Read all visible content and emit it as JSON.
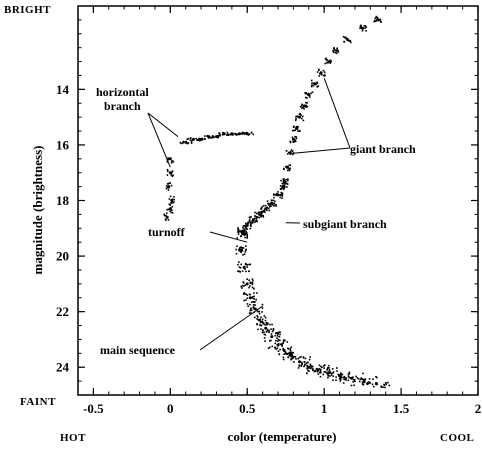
{
  "chart_data": {
    "type": "scatter",
    "title": "",
    "xlabel": "color (temperature)",
    "ylabel": "magnitude (brightness)",
    "xlim": [
      -0.6,
      2.0
    ],
    "ylim": [
      25.0,
      11.0
    ],
    "y_inverted": true,
    "x_ticks": [
      -0.5,
      0,
      0.5,
      1,
      1.5,
      2
    ],
    "x_tick_labels": [
      "-0.5",
      "0",
      "0.5",
      "1",
      "1.5",
      "2"
    ],
    "y_ticks": [
      14,
      16,
      18,
      20,
      22,
      24
    ],
    "y_tick_labels": [
      "14",
      "16",
      "18",
      "20",
      "22",
      "24"
    ],
    "corner_labels": {
      "top_left": "BRIGHT",
      "bottom_left": "FAINT",
      "bottom_x_left": "HOT",
      "bottom_x_right": "COOL"
    },
    "annotations": [
      {
        "text": "horizontal branch",
        "lines": [
          "horizontal",
          "branch"
        ],
        "targets": [
          [
            0.05,
            15.7
          ],
          [
            0.0,
            16.8
          ]
        ]
      },
      {
        "text": "giant branch",
        "targets": [
          [
            1.0,
            13.6
          ],
          [
            0.8,
            16.3
          ]
        ]
      },
      {
        "text": "subgiant branch",
        "targets": [
          [
            0.75,
            18.8
          ]
        ]
      },
      {
        "text": "turnoff",
        "targets": [
          [
            0.5,
            19.5
          ]
        ]
      },
      {
        "text": "main sequence",
        "targets": [
          [
            0.6,
            21.8
          ]
        ]
      }
    ],
    "series": [
      {
        "role": "main-sequence",
        "x": [
          0.47,
          0.46,
          0.48,
          0.5,
          0.52,
          0.55,
          0.58,
          0.62,
          0.66,
          0.7,
          0.74,
          0.79,
          0.84,
          0.9,
          0.96,
          1.03,
          1.1,
          1.18,
          1.26,
          1.34
        ],
        "y": [
          19.2,
          19.8,
          20.4,
          21.0,
          21.5,
          21.9,
          22.3,
          22.6,
          22.9,
          23.2,
          23.4,
          23.6,
          23.8,
          24.0,
          24.1,
          24.2,
          24.3,
          24.4,
          24.5,
          24.6
        ]
      },
      {
        "role": "subgiant-branch",
        "x": [
          0.47,
          0.5,
          0.54,
          0.58,
          0.62,
          0.66,
          0.7,
          0.74
        ],
        "y": [
          19.1,
          18.9,
          18.7,
          18.5,
          18.3,
          18.1,
          17.8,
          17.5
        ]
      },
      {
        "role": "giant-branch",
        "x": [
          0.74,
          0.76,
          0.78,
          0.8,
          0.82,
          0.84,
          0.87,
          0.9,
          0.94,
          0.98,
          1.03,
          1.08,
          1.15,
          1.25,
          1.35
        ],
        "y": [
          17.3,
          16.8,
          16.3,
          15.8,
          15.4,
          15.0,
          14.6,
          14.2,
          13.8,
          13.4,
          13.0,
          12.6,
          12.2,
          11.8,
          11.5
        ]
      },
      {
        "role": "horizontal-branch",
        "x": [
          0.1,
          0.15,
          0.2,
          0.25,
          0.3,
          0.35,
          0.4,
          0.45,
          0.5
        ],
        "y": [
          15.9,
          15.8,
          15.8,
          15.7,
          15.7,
          15.6,
          15.6,
          15.6,
          15.6
        ]
      },
      {
        "role": "blue-horizontal-branch",
        "x": [
          0.0,
          0.0,
          -0.01,
          0.01,
          0.0,
          -0.02
        ],
        "y": [
          16.5,
          17.0,
          17.5,
          18.0,
          18.3,
          18.6
        ]
      }
    ]
  }
}
